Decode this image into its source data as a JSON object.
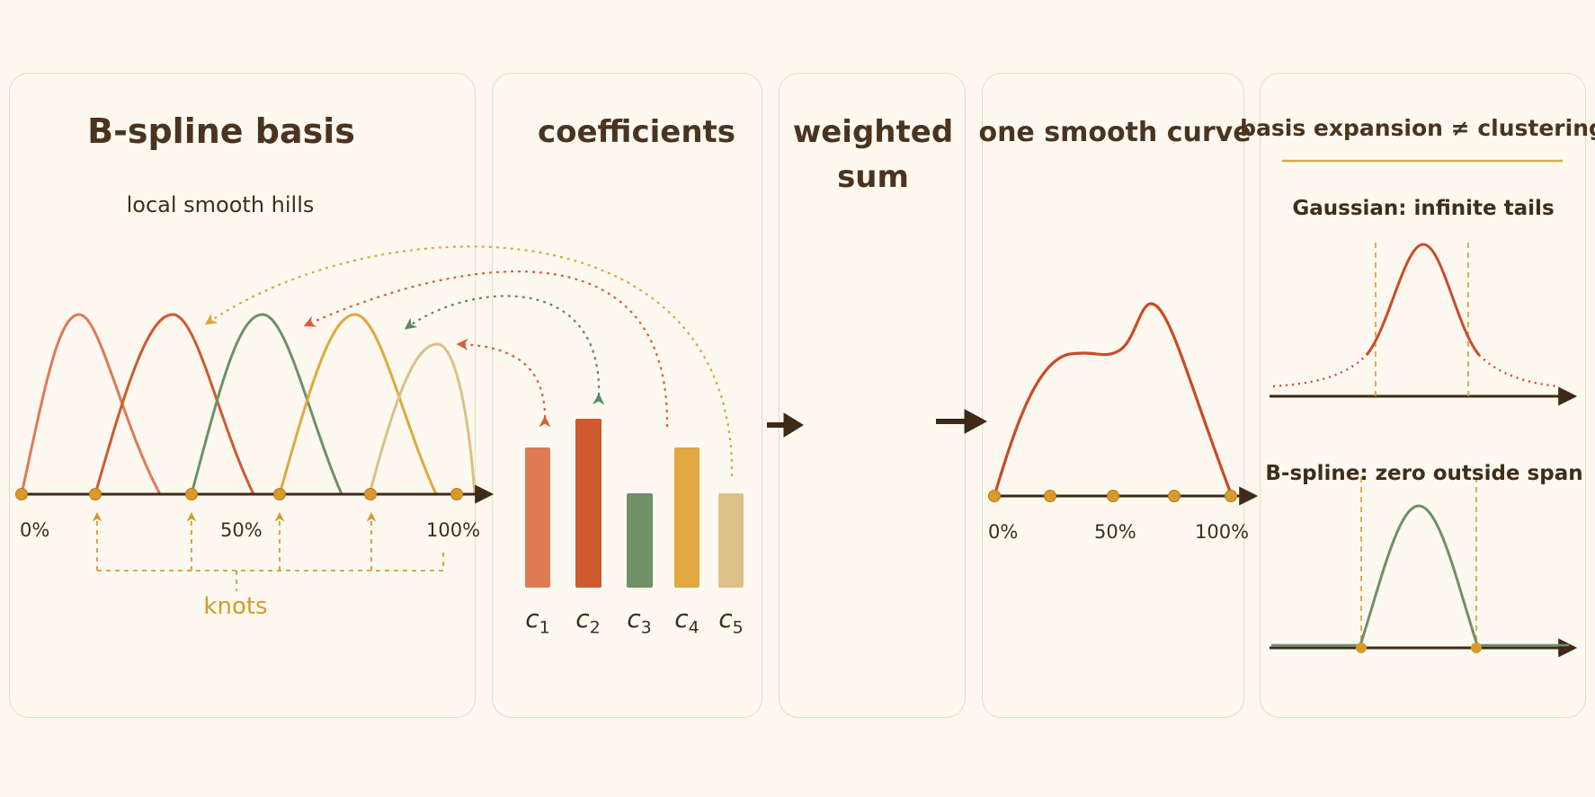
{
  "colors": {
    "background": "#fcf8ef",
    "axis": "#3d2a18",
    "knot": "#d99a2a",
    "basis": [
      "#e07a55",
      "#cf5a30",
      "#6e9168",
      "#e0a83e",
      "#dcc088"
    ],
    "curve": "#cc4a26",
    "gaussian": "#cc4a26",
    "bspline_compare": "#6e9168"
  },
  "panel_basis": {
    "title": "B-spline basis",
    "subtitle": "local smooth hills",
    "tick_labels": [
      "0%",
      "50%",
      "100%"
    ],
    "knots_label": "knots"
  },
  "panel_coefficients": {
    "title": "coefficients",
    "labels": [
      {
        "letter": "c",
        "index": "1"
      },
      {
        "letter": "c",
        "index": "2"
      },
      {
        "letter": "c",
        "index": "3"
      },
      {
        "letter": "c",
        "index": "4"
      },
      {
        "letter": "c",
        "index": "5"
      }
    ],
    "values": [
      0.82,
      0.97,
      0.51,
      0.82,
      0.51
    ]
  },
  "panel_sum": {
    "title_line1": "weighted",
    "title_line2": "sum"
  },
  "panel_curve": {
    "title": "one smooth curve",
    "tick_labels": [
      "0%",
      "50%",
      "100%"
    ]
  },
  "panel_compare": {
    "title": "basis expansion ≠ clustering",
    "gaussian_label": "Gaussian: infinite tails",
    "bspline_label": "B-spline: zero outside span"
  }
}
